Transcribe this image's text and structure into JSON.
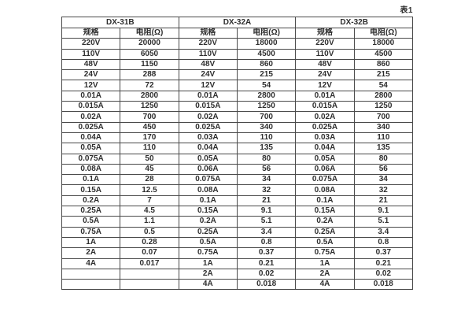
{
  "caption": "表1",
  "table": {
    "groups": [
      {
        "label": "DX-31B"
      },
      {
        "label": "DX-32A"
      },
      {
        "label": "DX-32B"
      }
    ],
    "sub_headers": [
      "规格",
      "电阻(Ω)",
      "规格",
      "电阻(Ω)",
      "规格",
      "电阻(Ω)"
    ],
    "rows": [
      [
        "220V",
        "20000",
        "220V",
        "18000",
        "220V",
        "18000"
      ],
      [
        "110V",
        "6050",
        "110V",
        "4500",
        "110V",
        "4500"
      ],
      [
        "48V",
        "1150",
        "48V",
        "860",
        "48V",
        "860"
      ],
      [
        "24V",
        "288",
        "24V",
        "215",
        "24V",
        "215"
      ],
      [
        "12V",
        "72",
        "12V",
        "54",
        "12V",
        "54"
      ],
      [
        "0.01A",
        "2800",
        "0.01A",
        "2800",
        "0.01A",
        "2800"
      ],
      [
        "0.015A",
        "1250",
        "0.015A",
        "1250",
        "0.015A",
        "1250"
      ],
      [
        "0.02A",
        "700",
        "0.02A",
        "700",
        "0.02A",
        "700"
      ],
      [
        "0.025A",
        "450",
        "0.025A",
        "340",
        "0.025A",
        "340"
      ],
      [
        "0.04A",
        "170",
        "0.03A",
        "110",
        "0.03A",
        "110"
      ],
      [
        "0.05A",
        "110",
        "0.04A",
        "135",
        "0.04A",
        "135"
      ],
      [
        "0.075A",
        "50",
        "0.05A",
        "80",
        "0.05A",
        "80"
      ],
      [
        "0.08A",
        "45",
        "0.06A",
        "56",
        "0.06A",
        "56"
      ],
      [
        "0.1A",
        "28",
        "0.075A",
        "34",
        "0.075A",
        "34"
      ],
      [
        "0.15A",
        "12.5",
        "0.08A",
        "32",
        "0.08A",
        "32"
      ],
      [
        "0.2A",
        "7",
        "0.1A",
        "21",
        "0.1A",
        "21"
      ],
      [
        "0.25A",
        "4.5",
        "0.15A",
        "9.1",
        "0.15A",
        "9.1"
      ],
      [
        "0.5A",
        "1.1",
        "0.2A",
        "5.1",
        "0.2A",
        "5.1"
      ],
      [
        "0.75A",
        "0.5",
        "0.25A",
        "3.4",
        "0.25A",
        "3.4"
      ],
      [
        "1A",
        "0.28",
        "0.5A",
        "0.8",
        "0.5A",
        "0.8"
      ],
      [
        "2A",
        "0.07",
        "0.75A",
        "0.37",
        "0.75A",
        "0.37"
      ],
      [
        "4A",
        "0.017",
        "1A",
        "0.21",
        "1A",
        "0.21"
      ],
      [
        "",
        "",
        "2A",
        "0.02",
        "2A",
        "0.02"
      ],
      [
        "",
        "",
        "4A",
        "0.018",
        "4A",
        "0.018"
      ]
    ]
  }
}
